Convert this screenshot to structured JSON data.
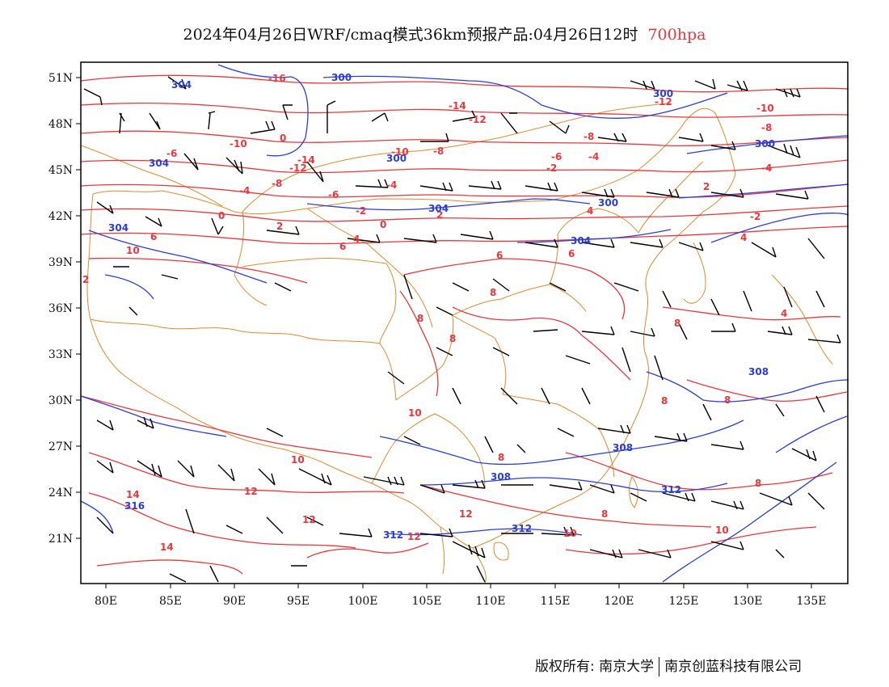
{
  "title": {
    "main": "2024年04月26日WRF/cmaq模式36km预报产品:04月26日12时",
    "level": "700hpa"
  },
  "map": {
    "lon_range": [
      78,
      138
    ],
    "lat_range": [
      18,
      52
    ],
    "lon_ticks": [
      "80E",
      "85E",
      "90E",
      "95E",
      "100E",
      "105E",
      "110E",
      "115E",
      "120E",
      "125E",
      "130E",
      "135E"
    ],
    "lat_ticks": [
      "51N",
      "48N",
      "45N",
      "42N",
      "39N",
      "36N",
      "33N",
      "30N",
      "27N",
      "24N",
      "21N"
    ],
    "colors": {
      "temperature": "#e8383d",
      "geopotential": "#2a3ed8",
      "boundaries": "#e08a2e",
      "wind": "#000000"
    },
    "temperature_labels": [
      "-16",
      "-14",
      "-12",
      "-10",
      "-8",
      "-6",
      "-4",
      "-2",
      "0",
      "2",
      "4",
      "6",
      "8",
      "10",
      "12",
      "14"
    ],
    "height_labels": [
      "300",
      "304",
      "308",
      "312",
      "316"
    ]
  },
  "footer": {
    "copyright": "版权所有: 南京大学",
    "company": "南京创蓝科技有限公司"
  }
}
